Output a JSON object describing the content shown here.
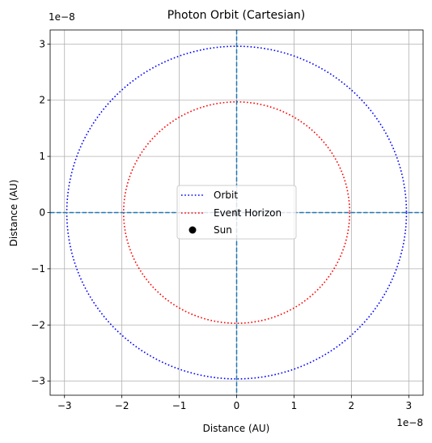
{
  "chart_data": {
    "type": "line",
    "title": "Photon Orbit (Cartesian)",
    "xlabel": "Distance (AU)",
    "ylabel": "Distance (AU)",
    "x_offset_text": "1e−8",
    "y_offset_text": "1e−8",
    "scale": 1e-08,
    "xlim": [
      -3.25,
      3.25
    ],
    "ylim": [
      -3.25,
      3.25
    ],
    "xticks": [
      -3,
      -2,
      -1,
      0,
      1,
      2,
      3
    ],
    "yticks": [
      -3,
      -2,
      -1,
      0,
      1,
      2,
      3
    ],
    "xtick_labels": [
      "−3",
      "−2",
      "−1",
      "0",
      "1",
      "2",
      "3"
    ],
    "ytick_labels": [
      "−3",
      "−2",
      "−1",
      "0",
      "1",
      "2",
      "3"
    ],
    "grid": true,
    "legend_position": "center",
    "series": [
      {
        "name": "Orbit",
        "shape": "circle",
        "center": [
          0,
          0
        ],
        "radius": 2.96,
        "color": "#0000ff",
        "style": "dotted"
      },
      {
        "name": "Event Horizon",
        "shape": "circle",
        "center": [
          0,
          0
        ],
        "radius": 1.97,
        "color": "#ff0000",
        "style": "dotted"
      },
      {
        "name": "Sun",
        "type": "scatter",
        "points": [
          [
            0,
            0
          ]
        ],
        "color": "#000000",
        "marker": "circle"
      }
    ],
    "reference_lines": [
      {
        "orientation": "horizontal",
        "value": 0,
        "color": "#1f77b4",
        "style": "dashed"
      },
      {
        "orientation": "vertical",
        "value": 0,
        "color": "#1f77b4",
        "style": "dashed"
      }
    ]
  }
}
